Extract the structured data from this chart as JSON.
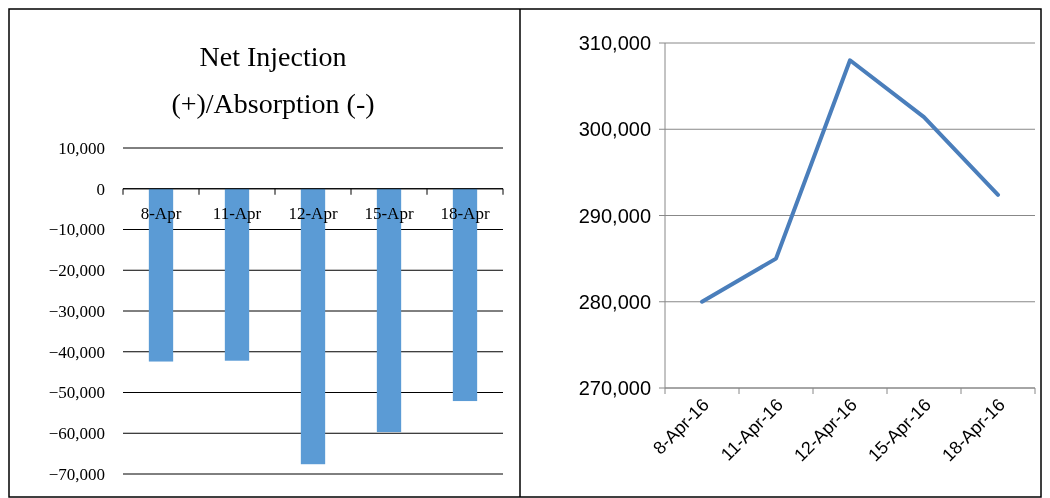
{
  "chart_data": [
    {
      "type": "bar",
      "title": "Net Injection\n(+)/Absorption (-)",
      "categories": [
        "8-Apr",
        "11-Apr",
        "12-Apr",
        "15-Apr",
        "18-Apr"
      ],
      "values": [
        -42400,
        -42200,
        -67600,
        -59700,
        -52100
      ],
      "color": "#5b9bd5",
      "ylim": [
        -70000,
        10000
      ],
      "yticks": [
        {
          "value": 10000,
          "label": "10,000"
        },
        0,
        {
          "value": -10000,
          "label": "−10,000"
        },
        {
          "value": -20000,
          "label": "−20,000"
        },
        {
          "value": -30000,
          "label": "−30,000"
        },
        {
          "value": -40000,
          "label": "−40,000"
        },
        {
          "value": -50000,
          "label": "−50,000"
        },
        {
          "value": -60000,
          "label": "−60,000"
        },
        {
          "value": -70000,
          "label": "−70,000"
        }
      ],
      "grid": "y"
    },
    {
      "type": "line",
      "categories": [
        "8-Apr-16",
        "11-Apr-16",
        "12-Apr-16",
        "15-Apr-16",
        "18-Apr-16"
      ],
      "values": [
        280000,
        285000,
        308000,
        301400,
        292400
      ],
      "color": "#4a7ebb",
      "ylim": [
        270000,
        310000
      ],
      "yticks": [
        {
          "value": 270000,
          "label": "270,000"
        },
        {
          "value": 280000,
          "label": "280,000"
        },
        {
          "value": 290000,
          "label": "290,000"
        },
        {
          "value": 300000,
          "label": "300,000"
        },
        {
          "value": 310000,
          "label": "310,000"
        }
      ],
      "grid": "y"
    }
  ]
}
